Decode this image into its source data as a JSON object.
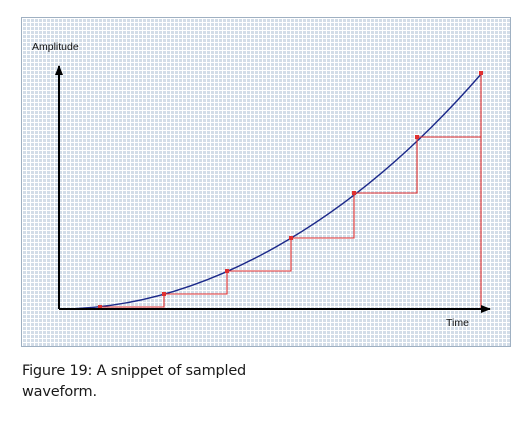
{
  "diagram": {
    "y_axis_label": "Amplitude",
    "x_axis_label": "Time",
    "colors": {
      "waveform": "#1c2a8a",
      "samples": "#e03030",
      "axes": "#000000",
      "background": "#d3dde8",
      "grid": "#ffffff"
    },
    "samples_count": 7,
    "hold_style": "sample-and-hold staircase"
  },
  "caption": {
    "line1": "Figure 19: A snippet of sampled",
    "line2": "waveform."
  }
}
